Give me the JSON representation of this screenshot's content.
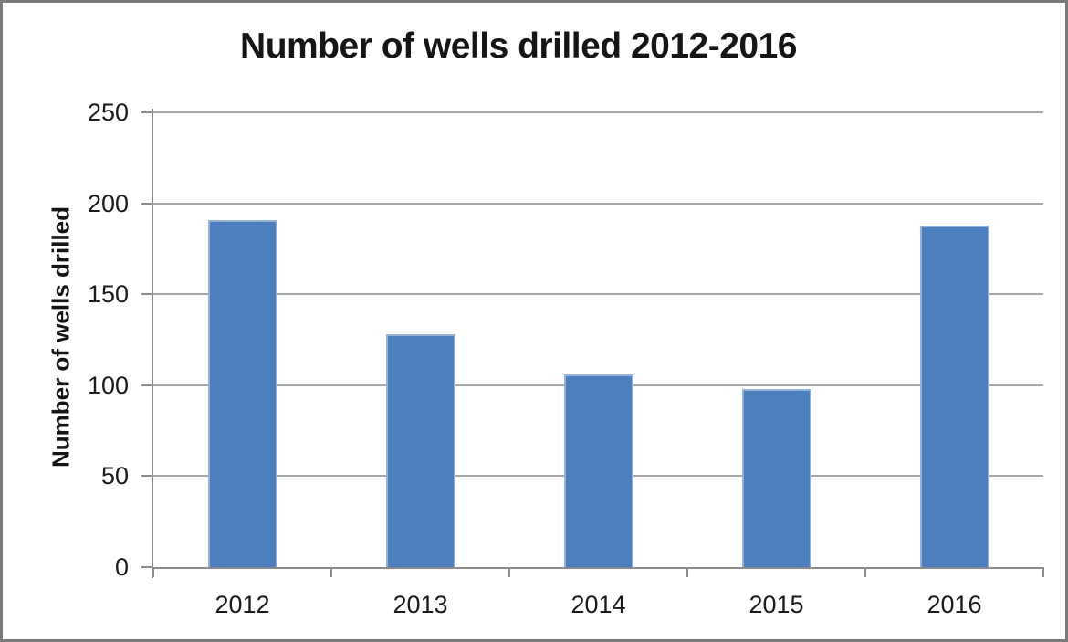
{
  "chart_data": {
    "type": "bar",
    "title": "Number of wells drilled 2012-2016",
    "xlabel": "",
    "ylabel": "Number of wells drilled",
    "categories": [
      "2012",
      "2013",
      "2014",
      "2015",
      "2016"
    ],
    "values": [
      191,
      128,
      106,
      98,
      188
    ],
    "ylim": [
      0,
      250
    ],
    "yticks": [
      0,
      50,
      100,
      150,
      200,
      250
    ],
    "grid": "horizontal gridlines at every 50, on",
    "legend": "none",
    "bar_color": "#4d7ebd",
    "bar_border_color": "#95b3d7",
    "gridline_color": "#a6a6a6",
    "axis_color": "#8c8c8c",
    "text_color": "#1a1a1a",
    "frame_border_color": "#7a7a7a",
    "background_color": "#ffffff"
  }
}
